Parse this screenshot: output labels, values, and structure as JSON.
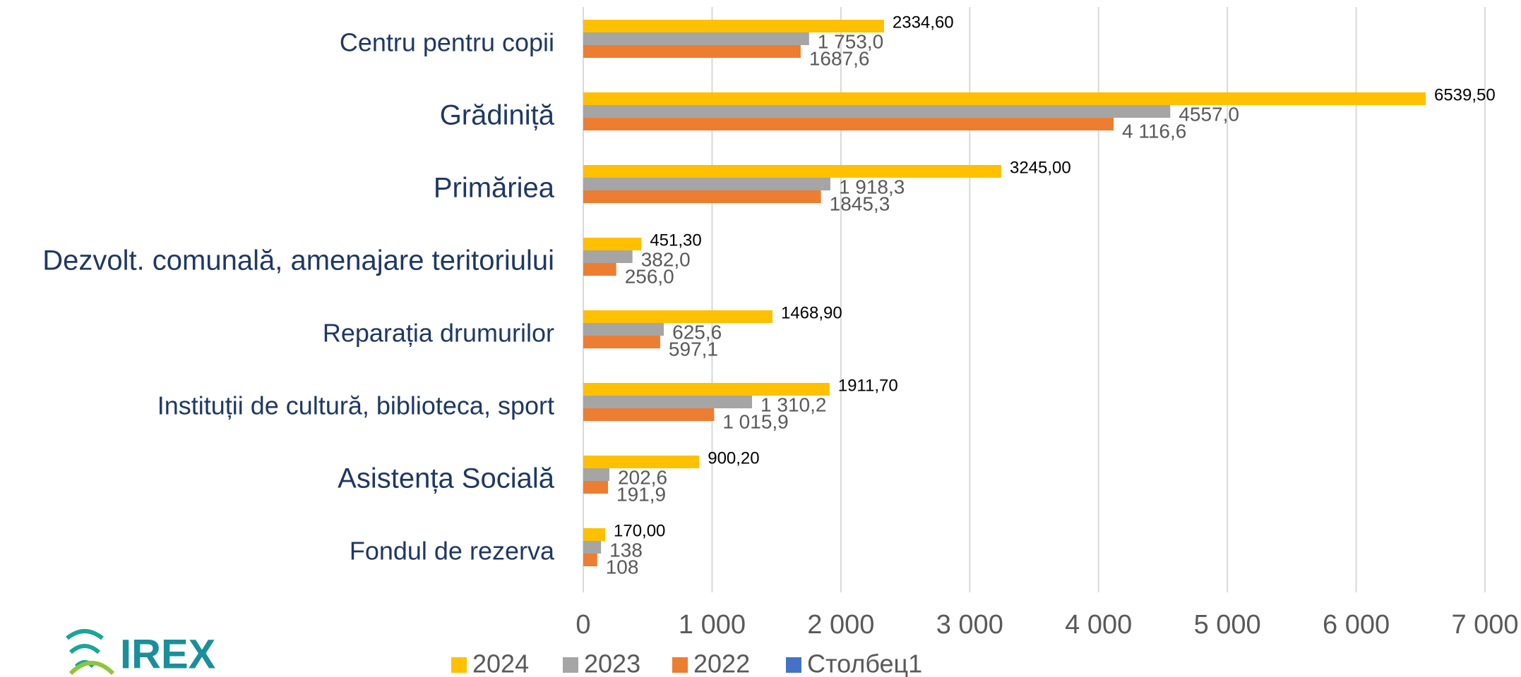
{
  "chart_data": {
    "type": "bar",
    "orientation": "horizontal",
    "categories": [
      "Centru pentru copii",
      "Grădiniță",
      "Primăriea",
      "Dezvolt. comunală, amenajare teritoriului",
      "Reparația drumurilor",
      "Instituții de cultură, biblioteca, sport",
      "Asistența Socială",
      "Fondul de rezerva"
    ],
    "series": [
      {
        "name": "2024",
        "color": "#ffc000",
        "values": [
          2334.6,
          6539.5,
          3245.0,
          451.3,
          1468.9,
          1911.7,
          900.2,
          170.0
        ],
        "value_labels": [
          "2334,60",
          "6539,50",
          "3245,00",
          "451,30",
          "1468,90",
          "1911,70",
          "900,20",
          "170,00"
        ]
      },
      {
        "name": "2023",
        "color": "#a5a5a5",
        "values": [
          1753.0,
          4557.0,
          1918.3,
          382.0,
          625.6,
          1310.2,
          202.6,
          138
        ],
        "value_labels": [
          "1 753,0",
          "4557,0",
          "1 918,3",
          "382,0",
          "625,6",
          "1 310,2",
          "202,6",
          "138"
        ]
      },
      {
        "name": "2022",
        "color": "#ed7d31",
        "values": [
          1687.6,
          4116.6,
          1845.3,
          256.0,
          597.1,
          1015.9,
          191.9,
          108
        ],
        "value_labels": [
          "1687,6",
          "4 116,6",
          "1845,3",
          "256,0",
          "597,1",
          "1 015,9",
          "191,9",
          "108"
        ]
      },
      {
        "name": "Столбец1",
        "color": "#4472c4",
        "values": [
          null,
          null,
          null,
          null,
          null,
          null,
          null,
          null
        ]
      }
    ],
    "xlim": [
      0,
      7000
    ],
    "xticks": [
      0,
      {
        "value": 1000,
        "label": "1 000"
      },
      {
        "value": 2000,
        "label": "2 000"
      },
      {
        "value": 3000,
        "label": "3 000"
      },
      {
        "value": 4000,
        "label": "4 000"
      },
      {
        "value": 5000,
        "label": "5 000"
      },
      {
        "value": 6000,
        "label": "6 000"
      },
      {
        "value": 7000,
        "label": "7 000"
      }
    ],
    "grid": true,
    "legend": "bottom"
  },
  "logo_text": "IREX"
}
